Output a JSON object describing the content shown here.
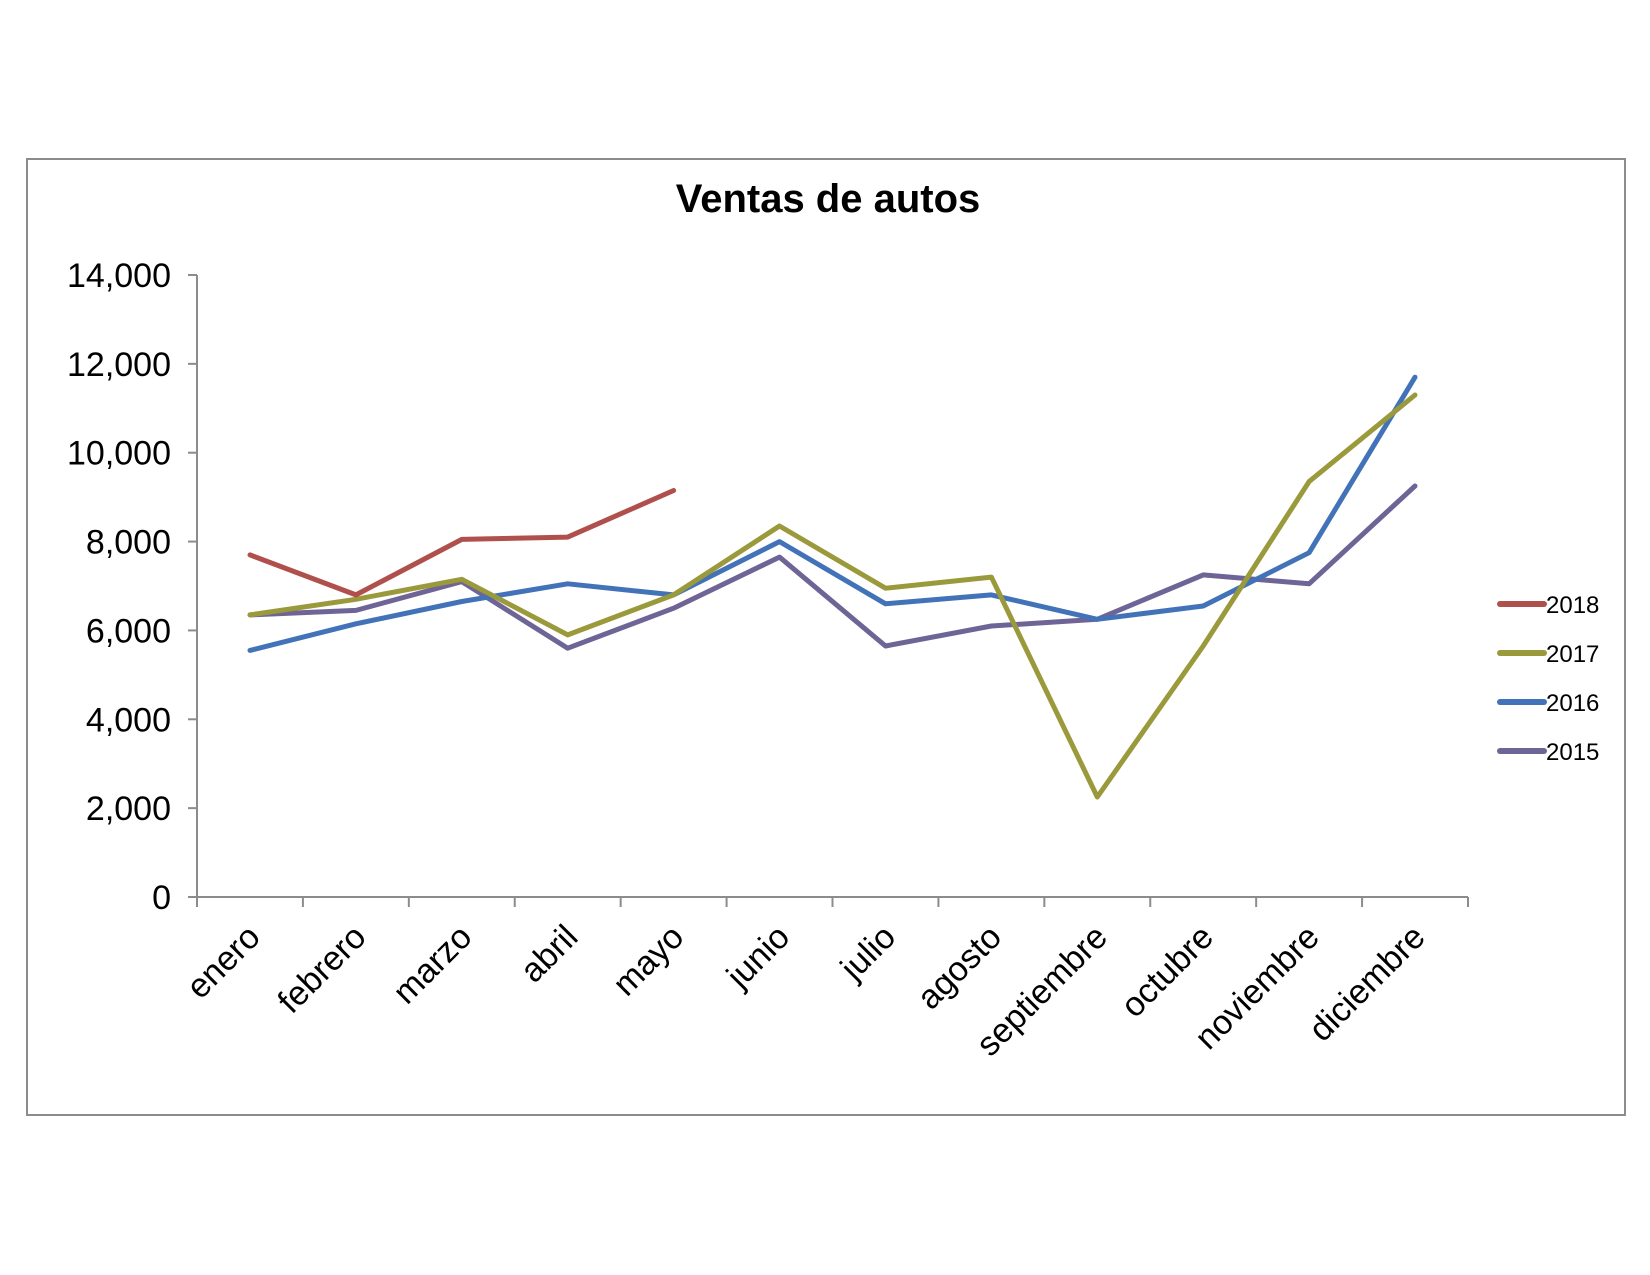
{
  "chart_data": {
    "type": "line",
    "title": "Ventas de autos",
    "xlabel": "",
    "ylabel": "",
    "ylim": [
      0,
      14000
    ],
    "yticks": [
      "0",
      "2,000",
      "4,000",
      "6,000",
      "8,000",
      "10,000",
      "12,000",
      "14,000"
    ],
    "categories": [
      "enero",
      "febrero",
      "marzo",
      "abril",
      "mayo",
      "junio",
      "julio",
      "agosto",
      "septiembre",
      "octubre",
      "noviembre",
      "diciembre"
    ],
    "grid": false,
    "legend_position": "right",
    "series": [
      {
        "name": "2018",
        "color": "#b0504d",
        "values": [
          7700,
          6800,
          8050,
          8100,
          9150,
          null,
          null,
          null,
          null,
          null,
          null,
          null
        ]
      },
      {
        "name": "2017",
        "color": "#9a9a3c",
        "values": [
          6350,
          6700,
          7150,
          5900,
          6800,
          8350,
          6950,
          7200,
          2250,
          5650,
          9350,
          11300
        ]
      },
      {
        "name": "2016",
        "color": "#4272b8",
        "values": [
          5550,
          6150,
          6650,
          7050,
          6800,
          8000,
          6600,
          6800,
          6250,
          6550,
          7750,
          11700
        ]
      },
      {
        "name": "2015",
        "color": "#6e6496",
        "values": [
          6350,
          6450,
          7100,
          5600,
          6500,
          7650,
          5650,
          6100,
          6250,
          7250,
          7050,
          9250
        ]
      }
    ]
  }
}
